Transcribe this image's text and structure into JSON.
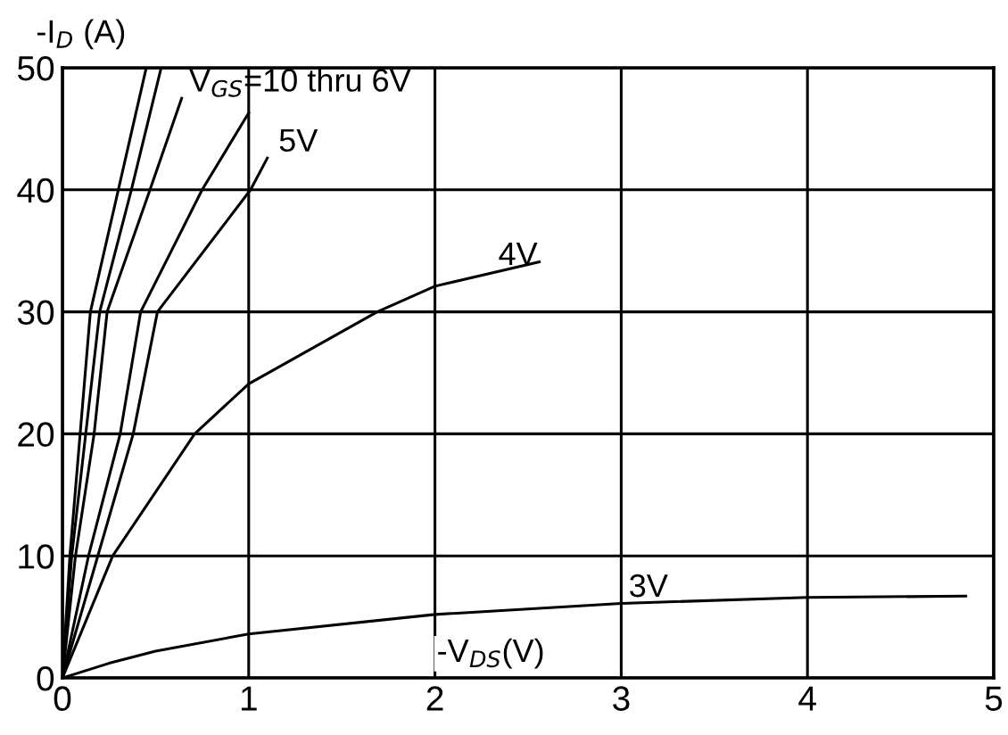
{
  "chart_data": {
    "type": "line",
    "ylabel": "-I$_{D}$ (A)",
    "xlabel": "-V$_{DS}$(V)",
    "xlim": [
      0,
      5
    ],
    "ylim": [
      0,
      50
    ],
    "xticks": [
      0,
      1,
      2,
      3,
      4,
      5
    ],
    "yticks": [
      0,
      10,
      20,
      30,
      40,
      50
    ],
    "grid": true,
    "legend": false,
    "marker": "none",
    "line_style": "solid",
    "series": [
      {
        "color": "#000000",
        "x": [
          0,
          0.04,
          0.095,
          0.15,
          0.3,
          0.45
        ],
        "values": [
          0,
          10,
          20,
          30,
          40,
          50
        ]
      },
      {
        "color": "#000000",
        "x": [
          0,
          0.05,
          0.125,
          0.2,
          0.37,
          0.53
        ],
        "values": [
          0,
          10,
          20,
          30,
          40,
          50
        ]
      },
      {
        "color": "#000000",
        "x": [
          0,
          0.07,
          0.17,
          0.24,
          0.47,
          0.64
        ],
        "values": [
          0,
          10,
          20,
          30,
          40,
          47.5
        ]
      },
      {
        "color": "#000000",
        "x": [
          0,
          0.14,
          0.31,
          0.42,
          0.75,
          1.0
        ],
        "values": [
          0,
          10,
          20,
          30,
          40,
          46.3
        ]
      },
      {
        "color": "#000000",
        "x": [
          0,
          0.19,
          0.38,
          0.51,
          1.01,
          1.1
        ],
        "values": [
          0,
          10,
          20,
          30,
          40,
          42.6
        ]
      },
      {
        "color": "#000000",
        "x": [
          0,
          0.27,
          0.71,
          1.0,
          1.69,
          2.0,
          2.56
        ],
        "values": [
          0,
          10,
          20,
          24.1,
          30,
          32.1,
          34.1
        ]
      },
      {
        "color": "#000000",
        "x": [
          0,
          0.25,
          0.5,
          1,
          2,
          3,
          4,
          4.85
        ],
        "values": [
          0,
          1.2,
          2.2,
          3.6,
          5.2,
          6.1,
          6.6,
          6.7
        ]
      }
    ],
    "annotations": [
      {
        "text": "V$_{GS}$=10 thru 6V",
        "x": 0.64,
        "y": 47.5
      },
      {
        "text": "5V",
        "x": 1.12,
        "y": 42.6
      },
      {
        "text": "4V",
        "x": 2.3,
        "y": 33.3
      },
      {
        "text": "3V",
        "x": 3.0,
        "y": 6.1
      }
    ]
  }
}
